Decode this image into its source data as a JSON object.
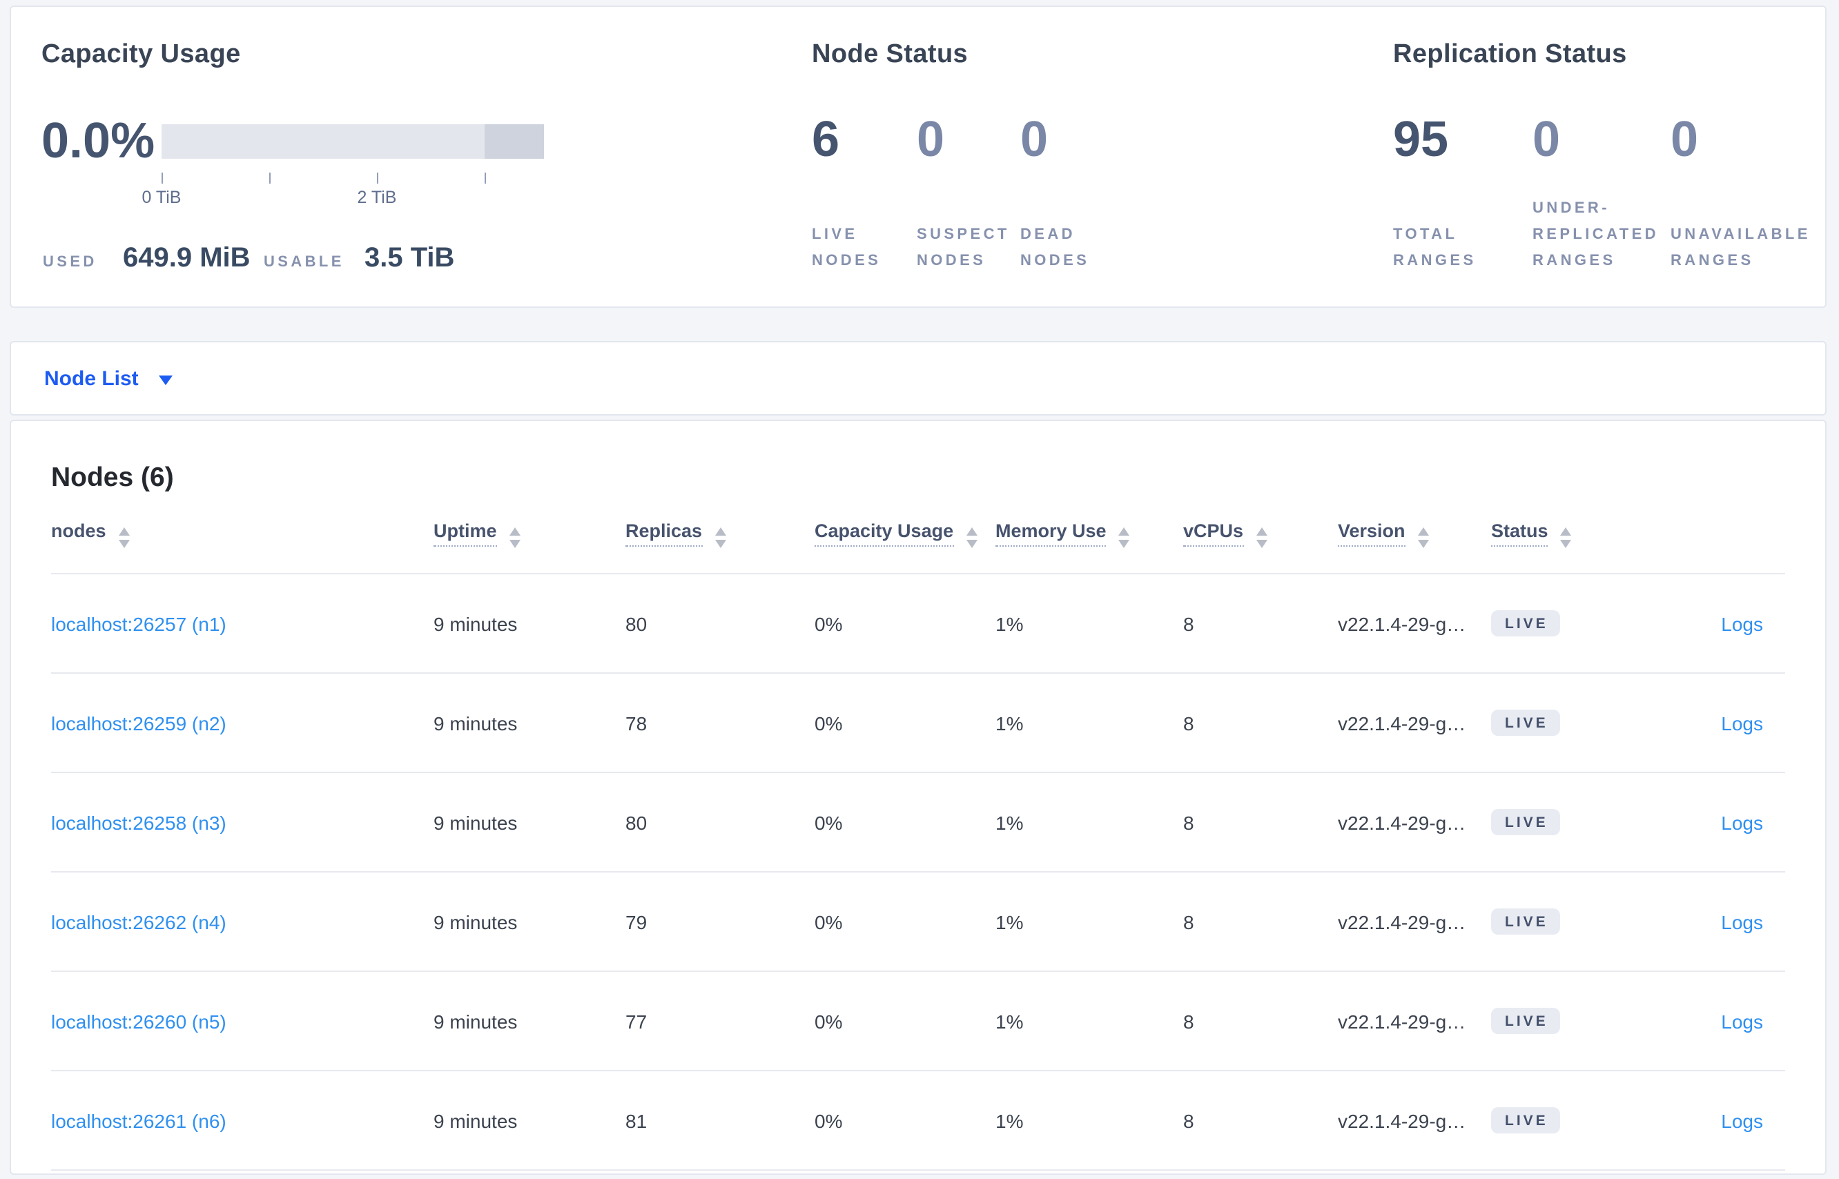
{
  "summary": {
    "capacity": {
      "title": "Capacity Usage",
      "percent": "0.0%",
      "axis_ticks": [
        "0 TiB",
        "2 TiB"
      ],
      "used_label": "USED",
      "used_value": "649.9 MiB",
      "usable_label": "USABLE",
      "usable_value": "3.5 TiB"
    },
    "node_status": {
      "title": "Node Status",
      "stats": [
        {
          "value": "6",
          "label": "LIVE NODES"
        },
        {
          "value": "0",
          "label": "SUSPECT NODES"
        },
        {
          "value": "0",
          "label": "DEAD NODES"
        }
      ]
    },
    "replication": {
      "title": "Replication Status",
      "stats": [
        {
          "value": "95",
          "label": "TOTAL RANGES"
        },
        {
          "value": "0",
          "label": "UNDER-REPLICATED RANGES"
        },
        {
          "value": "0",
          "label": "UNAVAILABLE RANGES"
        }
      ]
    }
  },
  "view_selector": {
    "label": "Node List",
    "chevron_icon": "chevron-down"
  },
  "nodes_table": {
    "title": "Nodes (6)",
    "columns": [
      "nodes",
      "Uptime",
      "Replicas",
      "Capacity Usage",
      "Memory Use",
      "vCPUs",
      "Version",
      "Status"
    ],
    "rows": [
      {
        "node": "localhost:26257 (n1)",
        "uptime": "9 minutes",
        "replicas": "80",
        "capacity_usage": "0%",
        "memory_use": "1%",
        "vcpus": "8",
        "version": "v22.1.4-29-g…",
        "status": "LIVE",
        "logs_label": "Logs"
      },
      {
        "node": "localhost:26259 (n2)",
        "uptime": "9 minutes",
        "replicas": "78",
        "capacity_usage": "0%",
        "memory_use": "1%",
        "vcpus": "8",
        "version": "v22.1.4-29-g…",
        "status": "LIVE",
        "logs_label": "Logs"
      },
      {
        "node": "localhost:26258 (n3)",
        "uptime": "9 minutes",
        "replicas": "80",
        "capacity_usage": "0%",
        "memory_use": "1%",
        "vcpus": "8",
        "version": "v22.1.4-29-g…",
        "status": "LIVE",
        "logs_label": "Logs"
      },
      {
        "node": "localhost:26262 (n4)",
        "uptime": "9 minutes",
        "replicas": "79",
        "capacity_usage": "0%",
        "memory_use": "1%",
        "vcpus": "8",
        "version": "v22.1.4-29-g…",
        "status": "LIVE",
        "logs_label": "Logs"
      },
      {
        "node": "localhost:26260 (n5)",
        "uptime": "9 minutes",
        "replicas": "77",
        "capacity_usage": "0%",
        "memory_use": "1%",
        "vcpus": "8",
        "version": "v22.1.4-29-g…",
        "status": "LIVE",
        "logs_label": "Logs"
      },
      {
        "node": "localhost:26261 (n6)",
        "uptime": "9 minutes",
        "replicas": "81",
        "capacity_usage": "0%",
        "memory_use": "1%",
        "vcpus": "8",
        "version": "v22.1.4-29-g…",
        "status": "LIVE",
        "logs_label": "Logs"
      }
    ]
  },
  "colors": {
    "accent_blue": "#1d5cf2",
    "link_blue": "#2f90f0",
    "heading": "#394455",
    "big_number": "#46556f",
    "muted_number": "#7a87a6",
    "caps_label": "#8691ad",
    "badge_bg": "#e8ebf2",
    "badge_text": "#44506b",
    "bar_light": "#e4e6ed",
    "bar_dark": "#ced3dd",
    "page_background": "#f4f5f9"
  }
}
